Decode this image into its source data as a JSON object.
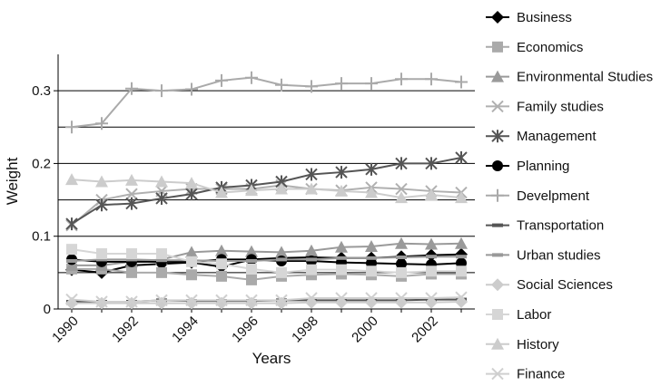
{
  "chart_data": {
    "type": "line",
    "xlabel": "Years",
    "ylabel": "Weight",
    "xlim": [
      1990,
      2003
    ],
    "ylim": [
      0,
      0.35
    ],
    "x": [
      1990,
      1991,
      1992,
      1993,
      1994,
      1995,
      1996,
      1997,
      1998,
      1999,
      2000,
      2001,
      2002,
      2003
    ],
    "x_tick_labels": [
      "1990",
      "1992",
      "1994",
      "1996",
      "1998",
      "2000",
      "2002"
    ],
    "x_tick_values": [
      1990,
      1992,
      1994,
      1996,
      1998,
      2000,
      2002
    ],
    "y_tick_labels": [
      "0",
      "0.1",
      "0.2",
      "0.3"
    ],
    "y_tick_values": [
      0,
      0.1,
      0.2,
      0.3
    ],
    "gridlines_y": [
      0.05,
      0.1,
      0.15,
      0.2,
      0.25,
      0.3
    ],
    "legend_position": "right",
    "series": [
      {
        "name": "Business",
        "color": "#000000",
        "marker": "diamond",
        "values": [
          0.054,
          0.05,
          0.06,
          0.062,
          0.064,
          0.058,
          0.068,
          0.07,
          0.071,
          0.07,
          0.07,
          0.072,
          0.074,
          0.075
        ]
      },
      {
        "name": "Economics",
        "color": "#aaaaaa",
        "marker": "square",
        "values": [
          0.055,
          0.055,
          0.05,
          0.05,
          0.047,
          0.045,
          0.04,
          0.045,
          0.047,
          0.048,
          0.047,
          0.045,
          0.048,
          0.048
        ]
      },
      {
        "name": "Environmental Studies",
        "color": "#9a9a9a",
        "marker": "triangle",
        "values": [
          0.06,
          0.06,
          0.065,
          0.068,
          0.078,
          0.08,
          0.079,
          0.078,
          0.08,
          0.085,
          0.086,
          0.09,
          0.089,
          0.09
        ]
      },
      {
        "name": "Family studies",
        "color": "#b0b0b0",
        "marker": "x",
        "values": [
          0.115,
          0.15,
          0.158,
          0.162,
          0.165,
          0.165,
          0.165,
          0.17,
          0.165,
          0.163,
          0.167,
          0.165,
          0.162,
          0.16
        ]
      },
      {
        "name": "Management",
        "color": "#555555",
        "marker": "asterisk",
        "values": [
          0.117,
          0.143,
          0.145,
          0.152,
          0.158,
          0.167,
          0.17,
          0.175,
          0.185,
          0.188,
          0.192,
          0.2,
          0.2,
          0.208
        ]
      },
      {
        "name": "Planning",
        "color": "#000000",
        "marker": "circle",
        "values": [
          0.068,
          0.065,
          0.065,
          0.065,
          0.065,
          0.068,
          0.068,
          0.066,
          0.066,
          0.064,
          0.063,
          0.062,
          0.061,
          0.063
        ]
      },
      {
        "name": "Develpment",
        "color": "#aaaaaa",
        "marker": "plus",
        "values": [
          0.25,
          0.255,
          0.303,
          0.3,
          0.302,
          0.314,
          0.318,
          0.308,
          0.306,
          0.31,
          0.31,
          0.316,
          0.316,
          0.312
        ]
      },
      {
        "name": "Transportation",
        "color": "#555555",
        "marker": "dash",
        "values": [
          0.01,
          0.01,
          0.01,
          0.012,
          0.011,
          0.011,
          0.011,
          0.012,
          0.012,
          0.012,
          0.012,
          0.012,
          0.013,
          0.013
        ]
      },
      {
        "name": "Urban studies",
        "color": "#999999",
        "marker": "dash",
        "values": [
          0.066,
          0.068,
          0.068,
          0.067,
          0.067,
          0.066,
          0.066,
          0.068,
          0.068,
          0.07,
          0.07,
          0.071,
          0.072,
          0.072
        ]
      },
      {
        "name": "Social Sciences",
        "color": "#cccccc",
        "marker": "diamond",
        "values": [
          0.008,
          0.008,
          0.008,
          0.008,
          0.008,
          0.008,
          0.008,
          0.008,
          0.009,
          0.009,
          0.009,
          0.009,
          0.009,
          0.01
        ]
      },
      {
        "name": "Labor",
        "color": "#d6d6d6",
        "marker": "square",
        "values": [
          0.082,
          0.076,
          0.076,
          0.076,
          0.065,
          0.062,
          0.055,
          0.05,
          0.054,
          0.054,
          0.052,
          0.05,
          0.052,
          0.052
        ]
      },
      {
        "name": "History",
        "color": "#cccccc",
        "marker": "triangle",
        "values": [
          0.178,
          0.175,
          0.177,
          0.175,
          0.173,
          0.16,
          0.163,
          0.165,
          0.165,
          0.162,
          0.16,
          0.153,
          0.157,
          0.153
        ]
      },
      {
        "name": "Finance",
        "color": "#cfcfcf",
        "marker": "x",
        "values": [
          0.013,
          0.01,
          0.01,
          0.012,
          0.012,
          0.012,
          0.012,
          0.012,
          0.015,
          0.015,
          0.015,
          0.015,
          0.015,
          0.016
        ]
      }
    ]
  }
}
